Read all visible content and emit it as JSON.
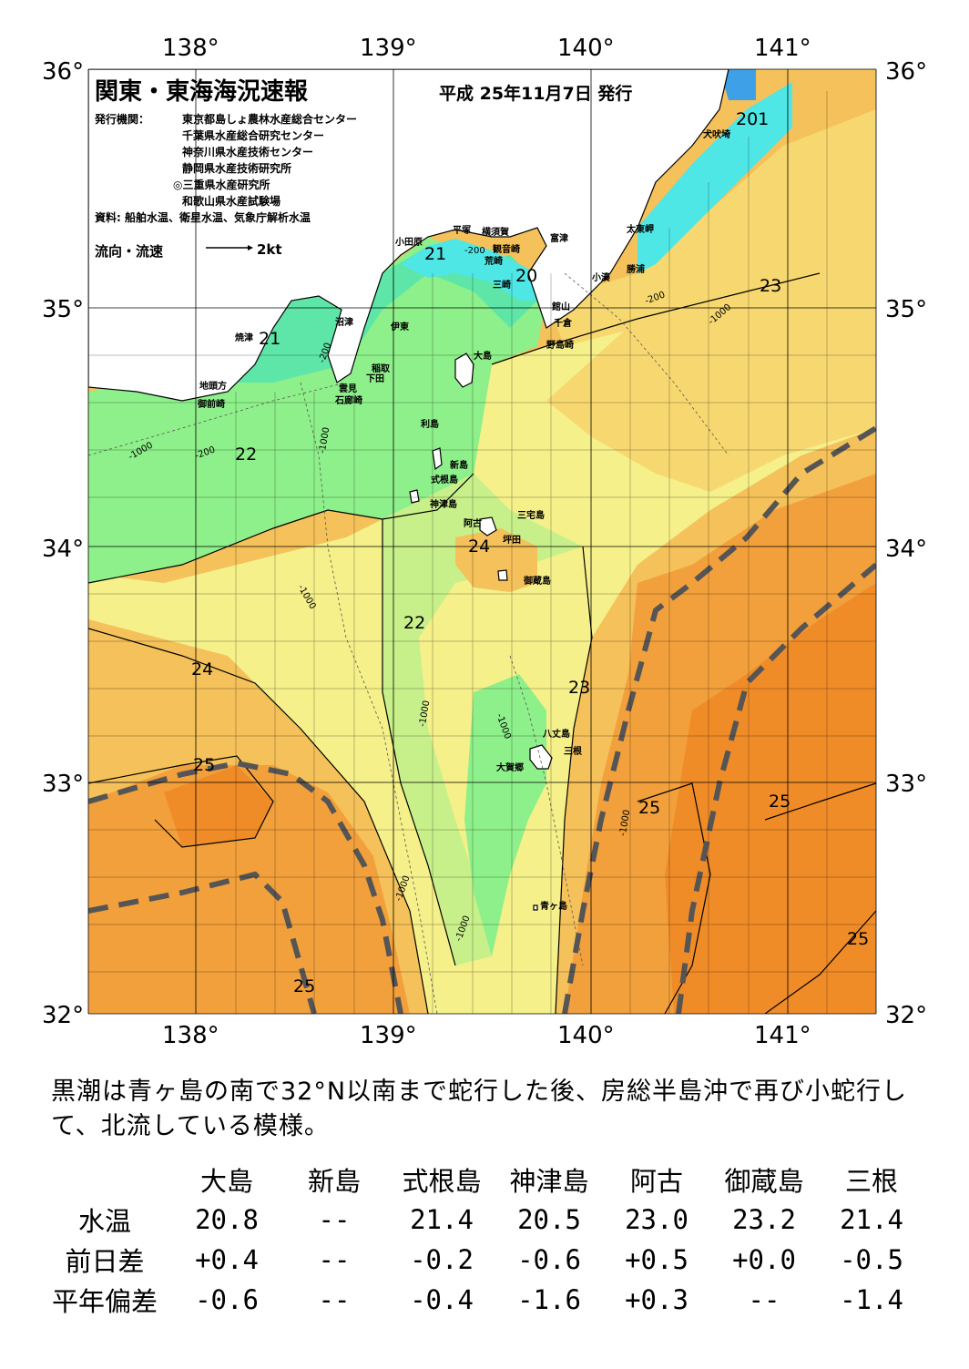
{
  "map": {
    "title": "関東・東海海況速報",
    "issued": "平成 25年11月7日 発行",
    "issuer_label": "発行機関：",
    "issuers": [
      "東京都島しょ農林水産総合センター",
      "千葉県水産総合研究センター",
      "神奈川県水産技術センター",
      "静岡県水産技術研究所",
      "◎三重県水産研究所",
      "和歌山県水産試験場"
    ],
    "source": "資料: 船舶水温、衛星水温、気象庁解析水温",
    "legend_label": "流向・流速",
    "legend_scale": "2kt",
    "lon_labels": [
      "138°",
      "139°",
      "140°",
      "141°"
    ],
    "lat_labels": [
      "36°",
      "35°",
      "34°",
      "33°",
      "32°"
    ],
    "places": [
      {
        "name": "犬吠埼"
      },
      {
        "name": "太東岬"
      },
      {
        "name": "勝浦"
      },
      {
        "name": "小湊"
      },
      {
        "name": "富津"
      },
      {
        "name": "館山"
      },
      {
        "name": "千倉"
      },
      {
        "name": "野島崎"
      },
      {
        "name": "横須賀"
      },
      {
        "name": "平塚"
      },
      {
        "name": "観音崎"
      },
      {
        "name": "荒崎"
      },
      {
        "name": "三崎"
      },
      {
        "name": "小田原"
      },
      {
        "name": "沼津"
      },
      {
        "name": "伊東"
      },
      {
        "name": "焼津"
      },
      {
        "name": "稲取"
      },
      {
        "name": "下田"
      },
      {
        "name": "雲見"
      },
      {
        "name": "石廊崎"
      },
      {
        "name": "地頭方"
      },
      {
        "name": "御前崎"
      },
      {
        "name": "大島"
      },
      {
        "name": "利島"
      },
      {
        "name": "新島"
      },
      {
        "name": "式根島"
      },
      {
        "name": "神津島"
      },
      {
        "name": "三宅島"
      },
      {
        "name": "阿古"
      },
      {
        "name": "坪田"
      },
      {
        "name": "御蔵島"
      },
      {
        "name": "八丈島"
      },
      {
        "name": "三根"
      },
      {
        "name": "大賀郷"
      },
      {
        "name": "青ヶ島"
      }
    ],
    "isotherms": [
      "201",
      "21",
      "20",
      "23",
      "21",
      "22",
      "24",
      "22",
      "24",
      "23",
      "25",
      "25",
      "25",
      "25",
      "25"
    ],
    "depth_labels": [
      "-200",
      "-1000"
    ],
    "colors": {
      "t20": "#4fe6e6",
      "t21": "#5ee6a8",
      "t22": "#8ef08a",
      "t22b": "#c8f08a",
      "t23": "#f5f08a",
      "t23b": "#f7d870",
      "t24": "#f5c15a",
      "t25": "#f2a03c",
      "t25b": "#f08c28",
      "kuroshio": "#555555",
      "land": "#ffffff"
    }
  },
  "description": "黒潮は青ヶ島の南で32°N以南まで蛇行した後、房総半島沖で再び小蛇行して、北流している模様。",
  "stats": {
    "columns": [
      "大島",
      "新島",
      "式根島",
      "神津島",
      "阿古",
      "御蔵島",
      "三根"
    ],
    "rows": [
      {
        "label": "水温",
        "values": [
          "20.8",
          "--",
          "21.4",
          "20.5",
          "23.0",
          "23.2",
          "21.4"
        ]
      },
      {
        "label": "前日差",
        "values": [
          "+0.4",
          "--",
          "-0.2",
          "-0.6",
          "+0.5",
          "+0.0",
          "-0.5"
        ]
      },
      {
        "label": "平年偏差",
        "values": [
          "-0.6",
          "--",
          "-0.4",
          "-1.6",
          "+0.3",
          "--",
          "-1.4"
        ]
      }
    ]
  }
}
